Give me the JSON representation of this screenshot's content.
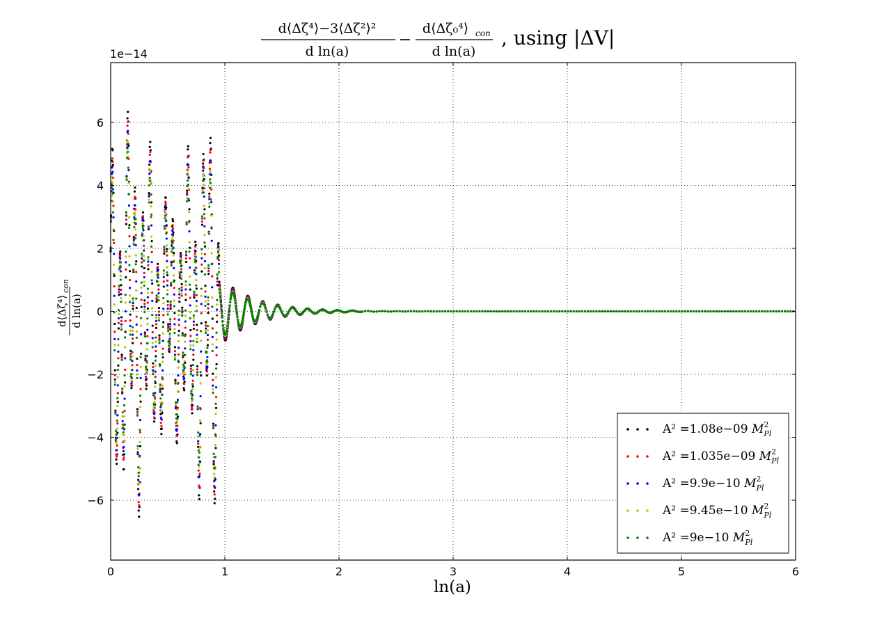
{
  "chart_data": {
    "type": "scatter",
    "title": {
      "text": "d⟨Δζ⁴⟩−3⟨Δζ²⟩² / d ln(a) − d⟨Δζ₀⁴⟩con / d ln(a) , using |ΔV|",
      "frac1_num": "d⟨Δζ⁴⟩−3⟨Δζ²⟩²",
      "frac1_den": "d ln(a)",
      "minus": "−",
      "frac2_num": "d⟨Δζ₀⁴⟩",
      "frac2_num_sub": "con",
      "frac2_den": "d ln(a)",
      "suffix": ", using |ΔV|"
    },
    "xlabel": "ln(a)",
    "ylabel": {
      "numerator": "d⟨Δζ⁴⟩",
      "numerator_sub": "con",
      "denominator": "d ln(a)"
    },
    "y_offset_text": "1e−14",
    "xlim": [
      0,
      6
    ],
    "ylim": [
      -7.9,
      7.9
    ],
    "y_scale": 1e-14,
    "xticks": [
      "0",
      "1",
      "2",
      "3",
      "4",
      "5",
      "6"
    ],
    "yticks": [
      "−6",
      "−4",
      "−2",
      "0",
      "2",
      "4",
      "6"
    ],
    "ytick_values": [
      -6,
      -4,
      -2,
      0,
      2,
      4,
      6
    ],
    "grid": true,
    "legend_position": "lower-right",
    "series": [
      {
        "name": "A² =1.08e−09 M²Pl",
        "legend_prefix": "A² =1.08e−09",
        "color": "#000000",
        "amp": 1.1,
        "phase": 0.0
      },
      {
        "name": "A² =1.035e−09 M²Pl",
        "legend_prefix": "A² =1.035e−09",
        "color": "#ff0000",
        "amp": 1.04,
        "phase": 0.05
      },
      {
        "name": "A² =9.9e−10 M²Pl",
        "legend_prefix": "A² =9.9e−10",
        "color": "#0000ff",
        "amp": 0.99,
        "phase": 0.1
      },
      {
        "name": "A² =9.45e−10 M²Pl",
        "legend_prefix": "A² =9.45e−10",
        "color": "#bfbf00",
        "amp": 0.93,
        "phase": 0.15
      },
      {
        "name": "A² =9e−10 M²Pl",
        "legend_prefix": "A² =9e−10",
        "color": "#008000",
        "amp": 0.88,
        "phase": 0.2
      }
    ],
    "legend_suffix_base": "M",
    "legend_suffix_sup": "2",
    "legend_suffix_sub": "Pl"
  }
}
